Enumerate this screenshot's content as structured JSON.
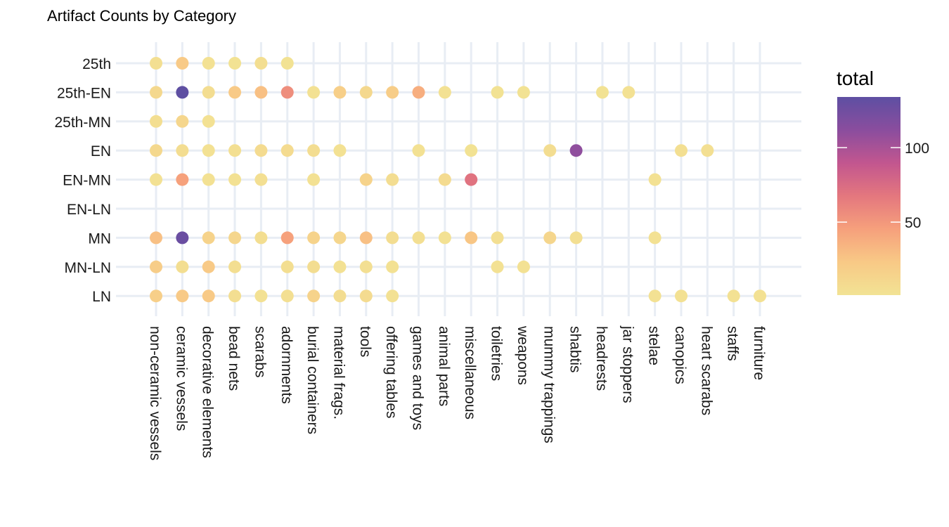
{
  "chart_data": {
    "type": "scatter",
    "title": "Artifact Counts by Category",
    "xlabel": "",
    "ylabel": "",
    "grid": true,
    "legend_position": "right",
    "x_categories": [
      "non-ceramic vessels",
      "ceramic vessels",
      "decorative elements",
      "bead nets",
      "scarabs",
      "adornments",
      "burial containers",
      "material frags.",
      "tools",
      "offering tables",
      "games and toys",
      "animal parts",
      "miscellaneous",
      "toiletries",
      "weapons",
      "mummy trappings",
      "shabtis",
      "headrests",
      "jar stoppers",
      "stelae",
      "canopics",
      "heart scarabs",
      "staffs",
      "furniture"
    ],
    "y_categories": [
      "25th",
      "25th-EN",
      "25th-MN",
      "EN",
      "EN-MN",
      "EN-LN",
      "MN",
      "MN-LN",
      "LN"
    ],
    "color_scale": {
      "title": "total",
      "min": 1,
      "max": 134,
      "ticks": [
        50,
        100
      ],
      "colors": [
        "#f2e394",
        "#f8c986",
        "#f6a07c",
        "#e4777e",
        "#c2568f",
        "#8a4d9e",
        "#5e4fa2"
      ]
    },
    "points": [
      {
        "y": "25th",
        "x": "non-ceramic vessels",
        "total": 4
      },
      {
        "y": "25th",
        "x": "ceramic vessels",
        "total": 22
      },
      {
        "y": "25th",
        "x": "decorative elements",
        "total": 3
      },
      {
        "y": "25th",
        "x": "bead nets",
        "total": 2
      },
      {
        "y": "25th",
        "x": "scarabs",
        "total": 5
      },
      {
        "y": "25th",
        "x": "adornments",
        "total": 2
      },
      {
        "y": "25th-EN",
        "x": "non-ceramic vessels",
        "total": 10
      },
      {
        "y": "25th-EN",
        "x": "ceramic vessels",
        "total": 134
      },
      {
        "y": "25th-EN",
        "x": "decorative elements",
        "total": 6
      },
      {
        "y": "25th-EN",
        "x": "bead nets",
        "total": 22
      },
      {
        "y": "25th-EN",
        "x": "scarabs",
        "total": 28
      },
      {
        "y": "25th-EN",
        "x": "adornments",
        "total": 55
      },
      {
        "y": "25th-EN",
        "x": "burial containers",
        "total": 3
      },
      {
        "y": "25th-EN",
        "x": "material frags.",
        "total": 18
      },
      {
        "y": "25th-EN",
        "x": "tools",
        "total": 10
      },
      {
        "y": "25th-EN",
        "x": "offering tables",
        "total": 20
      },
      {
        "y": "25th-EN",
        "x": "games and toys",
        "total": 38
      },
      {
        "y": "25th-EN",
        "x": "animal parts",
        "total": 3
      },
      {
        "y": "25th-EN",
        "x": "toiletries",
        "total": 2
      },
      {
        "y": "25th-EN",
        "x": "weapons",
        "total": 2
      },
      {
        "y": "25th-EN",
        "x": "headrests",
        "total": 2
      },
      {
        "y": "25th-EN",
        "x": "jar stoppers",
        "total": 3
      },
      {
        "y": "25th-MN",
        "x": "non-ceramic vessels",
        "total": 5
      },
      {
        "y": "25th-MN",
        "x": "ceramic vessels",
        "total": 12
      },
      {
        "y": "25th-MN",
        "x": "decorative elements",
        "total": 3
      },
      {
        "y": "EN",
        "x": "non-ceramic vessels",
        "total": 10
      },
      {
        "y": "EN",
        "x": "ceramic vessels",
        "total": 6
      },
      {
        "y": "EN",
        "x": "decorative elements",
        "total": 3
      },
      {
        "y": "EN",
        "x": "bead nets",
        "total": 4
      },
      {
        "y": "EN",
        "x": "scarabs",
        "total": 8
      },
      {
        "y": "EN",
        "x": "adornments",
        "total": 8
      },
      {
        "y": "EN",
        "x": "burial containers",
        "total": 6
      },
      {
        "y": "EN",
        "x": "material frags.",
        "total": 3
      },
      {
        "y": "EN",
        "x": "games and toys",
        "total": 3
      },
      {
        "y": "EN",
        "x": "miscellaneous",
        "total": 2
      },
      {
        "y": "EN",
        "x": "mummy trappings",
        "total": 6
      },
      {
        "y": "EN",
        "x": "shabtis",
        "total": 110
      },
      {
        "y": "EN",
        "x": "canopics",
        "total": 4
      },
      {
        "y": "EN",
        "x": "heart scarabs",
        "total": 4
      },
      {
        "y": "EN-MN",
        "x": "non-ceramic vessels",
        "total": 3
      },
      {
        "y": "EN-MN",
        "x": "ceramic vessels",
        "total": 45
      },
      {
        "y": "EN-MN",
        "x": "decorative elements",
        "total": 3
      },
      {
        "y": "EN-MN",
        "x": "bead nets",
        "total": 3
      },
      {
        "y": "EN-MN",
        "x": "scarabs",
        "total": 4
      },
      {
        "y": "EN-MN",
        "x": "burial containers",
        "total": 3
      },
      {
        "y": "EN-MN",
        "x": "tools",
        "total": 15
      },
      {
        "y": "EN-MN",
        "x": "offering tables",
        "total": 6
      },
      {
        "y": "EN-MN",
        "x": "animal parts",
        "total": 8
      },
      {
        "y": "EN-MN",
        "x": "miscellaneous",
        "total": 70
      },
      {
        "y": "EN-MN",
        "x": "stelae",
        "total": 3
      },
      {
        "y": "MN",
        "x": "non-ceramic vessels",
        "total": 28
      },
      {
        "y": "MN",
        "x": "ceramic vessels",
        "total": 128
      },
      {
        "y": "MN",
        "x": "decorative elements",
        "total": 15
      },
      {
        "y": "MN",
        "x": "bead nets",
        "total": 12
      },
      {
        "y": "MN",
        "x": "scarabs",
        "total": 5
      },
      {
        "y": "MN",
        "x": "adornments",
        "total": 45
      },
      {
        "y": "MN",
        "x": "burial containers",
        "total": 15
      },
      {
        "y": "MN",
        "x": "material frags.",
        "total": 12
      },
      {
        "y": "MN",
        "x": "tools",
        "total": 28
      },
      {
        "y": "MN",
        "x": "offering tables",
        "total": 6
      },
      {
        "y": "MN",
        "x": "games and toys",
        "total": 4
      },
      {
        "y": "MN",
        "x": "animal parts",
        "total": 3
      },
      {
        "y": "MN",
        "x": "miscellaneous",
        "total": 25
      },
      {
        "y": "MN",
        "x": "toiletries",
        "total": 4
      },
      {
        "y": "MN",
        "x": "mummy trappings",
        "total": 12
      },
      {
        "y": "MN",
        "x": "shabtis",
        "total": 4
      },
      {
        "y": "MN",
        "x": "stelae",
        "total": 3
      },
      {
        "y": "MN-LN",
        "x": "non-ceramic vessels",
        "total": 20
      },
      {
        "y": "MN-LN",
        "x": "ceramic vessels",
        "total": 5
      },
      {
        "y": "MN-LN",
        "x": "decorative elements",
        "total": 22
      },
      {
        "y": "MN-LN",
        "x": "bead nets",
        "total": 5
      },
      {
        "y": "MN-LN",
        "x": "adornments",
        "total": 5
      },
      {
        "y": "MN-LN",
        "x": "burial containers",
        "total": 6
      },
      {
        "y": "MN-LN",
        "x": "material frags.",
        "total": 3
      },
      {
        "y": "MN-LN",
        "x": "tools",
        "total": 4
      },
      {
        "y": "MN-LN",
        "x": "offering tables",
        "total": 3
      },
      {
        "y": "MN-LN",
        "x": "toiletries",
        "total": 3
      },
      {
        "y": "MN-LN",
        "x": "weapons",
        "total": 3
      },
      {
        "y": "LN",
        "x": "non-ceramic vessels",
        "total": 18
      },
      {
        "y": "LN",
        "x": "ceramic vessels",
        "total": 22
      },
      {
        "y": "LN",
        "x": "decorative elements",
        "total": 22
      },
      {
        "y": "LN",
        "x": "bead nets",
        "total": 5
      },
      {
        "y": "LN",
        "x": "scarabs",
        "total": 3
      },
      {
        "y": "LN",
        "x": "adornments",
        "total": 4
      },
      {
        "y": "LN",
        "x": "burial containers",
        "total": 15
      },
      {
        "y": "LN",
        "x": "material frags.",
        "total": 6
      },
      {
        "y": "LN",
        "x": "tools",
        "total": 8
      },
      {
        "y": "LN",
        "x": "offering tables",
        "total": 3
      },
      {
        "y": "LN",
        "x": "stelae",
        "total": 3
      },
      {
        "y": "LN",
        "x": "canopics",
        "total": 3
      },
      {
        "y": "LN",
        "x": "staffs",
        "total": 3
      },
      {
        "y": "LN",
        "x": "furniture",
        "total": 3
      }
    ]
  }
}
